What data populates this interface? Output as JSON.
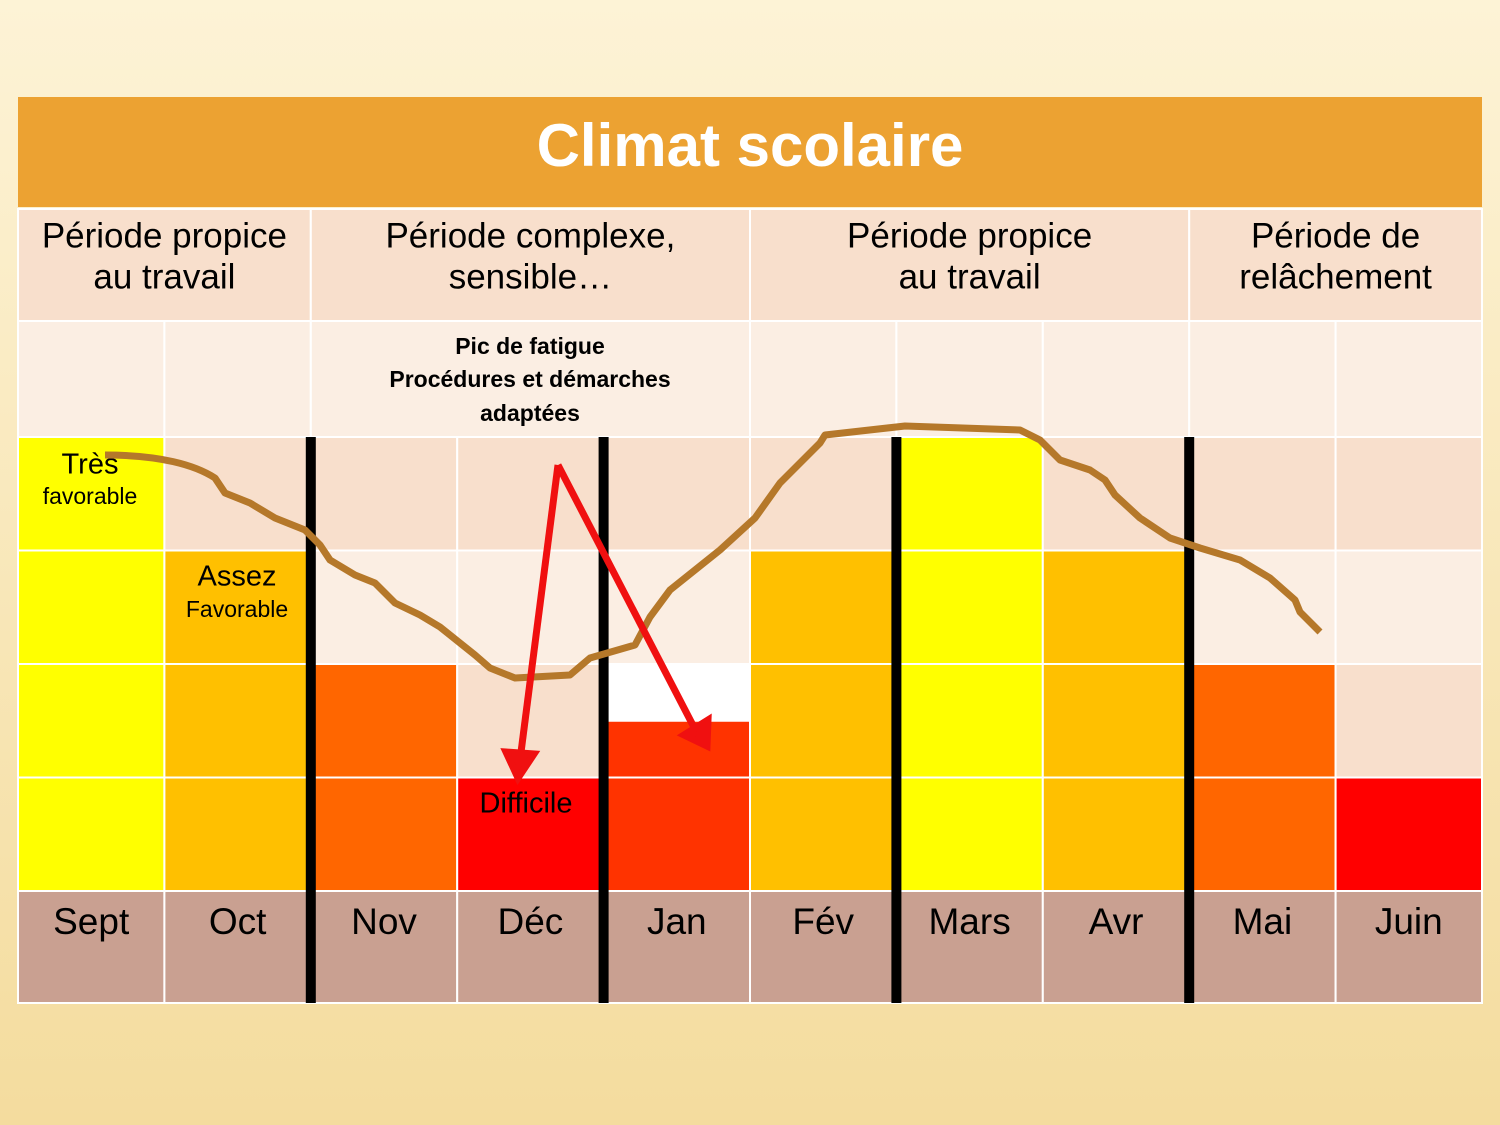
{
  "title": "Climat scolaire",
  "periods": [
    [
      "Période propice",
      "au travail"
    ],
    [
      "Période complexe,",
      "sensible…"
    ],
    [
      "Période propice",
      "au travail"
    ],
    [
      "Période de",
      "relâchement"
    ]
  ],
  "note": [
    "Pic de fatigue",
    "Procédures et démarches",
    "adaptées"
  ],
  "level_labels": [
    [
      "Très",
      "favorable"
    ],
    [
      "Assez",
      "Favorable"
    ],
    [
      "Difficile"
    ]
  ],
  "columns": [
    {
      "month": "Sept",
      "cells": [
        "#ffff00",
        "#ffff00",
        "#ffff00",
        "#ffff00"
      ]
    },
    {
      "month": "Oct",
      "cells": [
        "#f8dfcc",
        "#ffc000",
        "#ffc000",
        "#ffc000"
      ]
    },
    {
      "month": "Nov",
      "cells": [
        "#f8dfcc",
        "#fbeee3",
        "#ff6600",
        "#ff6600"
      ]
    },
    {
      "month": "Déc",
      "cells": [
        "#f8dfcc",
        "#fbeee3",
        "#f8dfcc",
        "#ff0000"
      ]
    },
    {
      "month": "Jan",
      "cells": [
        "#f8dfcc",
        "#fbeee3",
        [
          "#ffffff",
          "#ff3300"
        ],
        "#ff3300"
      ]
    },
    {
      "month": "Fév",
      "cells": [
        "#f8dfcc",
        "#ffc000",
        "#ffc000",
        "#ffc000"
      ]
    },
    {
      "month": "Mars",
      "cells": [
        "#ffff00",
        "#ffff00",
        "#ffff00",
        "#ffff00"
      ]
    },
    {
      "month": "Avr",
      "cells": [
        "#f8dfcc",
        "#ffc000",
        "#ffc000",
        "#ffc000"
      ]
    },
    {
      "month": "Mai",
      "cells": [
        "#f8dfcc",
        "#fbeee3",
        "#ff6600",
        "#ff6600"
      ]
    },
    {
      "month": "Juin",
      "cells": [
        "#f8dfcc",
        "#fbeee3",
        "#f8dfcc",
        "#ff0000"
      ]
    }
  ]
}
